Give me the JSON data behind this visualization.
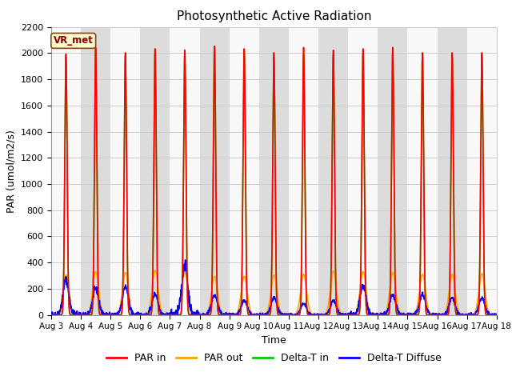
{
  "title": "Photosynthetic Active Radiation",
  "xlabel": "Time",
  "ylabel": "PAR (umol/m2/s)",
  "ylim": [
    0,
    2200
  ],
  "annotation": "VR_met",
  "series": {
    "PAR_in": {
      "color": "#ff0000",
      "label": "PAR in",
      "linewidth": 1.2
    },
    "PAR_out": {
      "color": "#ffa500",
      "label": "PAR out",
      "linewidth": 1.2
    },
    "Delta_T_in": {
      "color": "#00cc00",
      "label": "Delta-T in",
      "linewidth": 1.2
    },
    "Delta_T_Diffuse": {
      "color": "#0000ff",
      "label": "Delta-T Diffuse",
      "linewidth": 1.2
    }
  },
  "x_tick_labels": [
    "Aug 3",
    "Aug 4",
    "Aug 5",
    "Aug 6",
    "Aug 7",
    "Aug 8",
    "Aug 9",
    "Aug 10",
    "Aug 11",
    "Aug 12",
    "Aug 13",
    "Aug 14",
    "Aug 15",
    "Aug 16",
    "Aug 17",
    "Aug 18"
  ],
  "background_gray": "#dcdcdc",
  "background_white": "#f8f8f8",
  "n_days": 15,
  "points_per_day": 144,
  "day_peaks_PAR_in": [
    2000,
    2050,
    2010,
    2040,
    2030,
    2060,
    2040,
    2010,
    2050,
    2030,
    2040,
    2050,
    2010,
    2010,
    2010
  ],
  "day_peaks_PAR_out": [
    305,
    330,
    325,
    340,
    330,
    295,
    295,
    305,
    310,
    335,
    330,
    325,
    310,
    310,
    315
  ],
  "day_peaks_Delta_T_in": [
    1980,
    2030,
    1990,
    2020,
    2000,
    2060,
    2020,
    1980,
    1990,
    1990,
    2010,
    2020,
    1990,
    1990,
    1990
  ],
  "day_peaks_Delta_T_Diffuse": [
    270,
    200,
    215,
    160,
    390,
    150,
    110,
    130,
    85,
    110,
    220,
    150,
    160,
    130,
    130
  ],
  "legend_loc": "lower center",
  "legend_ncol": 4,
  "grid_color": "#cccccc",
  "figsize": [
    6.4,
    4.8
  ],
  "dpi": 100
}
